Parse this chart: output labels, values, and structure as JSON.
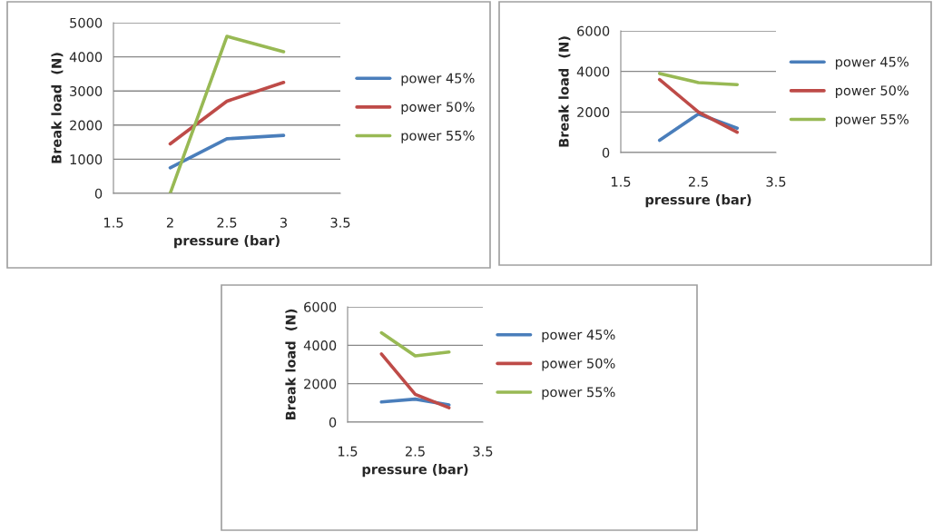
{
  "chart_data": [
    {
      "type": "line",
      "xlabel": "pressure (bar)",
      "ylabel": "Break load  (N)",
      "x": [
        2,
        2.5,
        3
      ],
      "xlim": [
        1.5,
        3.5
      ],
      "xticks": [
        1.5,
        2,
        2.5,
        3,
        3.5
      ],
      "ylim": [
        0,
        5000
      ],
      "yticks": [
        0,
        1000,
        2000,
        3000,
        4000,
        5000
      ],
      "grid": "y",
      "legend": "right",
      "marker": "none",
      "series": [
        {
          "name": "power 45%",
          "color": "#4a7ebb",
          "values": [
            750,
            1600,
            1700
          ]
        },
        {
          "name": "power 50%",
          "color": "#be4b48",
          "values": [
            1450,
            2700,
            3250
          ]
        },
        {
          "name": "power 55%",
          "color": "#98b954",
          "values": [
            0,
            4600,
            4150
          ]
        }
      ]
    },
    {
      "type": "line",
      "xlabel": "pressure (bar)",
      "ylabel": "Break load  (N)",
      "x": [
        2,
        2.5,
        3
      ],
      "xlim": [
        1.5,
        3.5
      ],
      "xticks": [
        1.5,
        2.5,
        3.5
      ],
      "ylim": [
        0,
        6000
      ],
      "yticks": [
        0,
        2000,
        4000,
        6000
      ],
      "grid": "y",
      "legend": "right",
      "marker": "none",
      "series": [
        {
          "name": "power 45%",
          "color": "#4a7ebb",
          "values": [
            600,
            1900,
            1200
          ]
        },
        {
          "name": "power 50%",
          "color": "#be4b48",
          "values": [
            3600,
            2000,
            1000
          ]
        },
        {
          "name": "power 55%",
          "color": "#98b954",
          "values": [
            3900,
            3450,
            3350
          ]
        }
      ]
    },
    {
      "type": "line",
      "xlabel": "pressure (bar)",
      "ylabel": "Break load  (N)",
      "x": [
        2,
        2.5,
        3
      ],
      "xlim": [
        1.5,
        3.5
      ],
      "xticks": [
        1.5,
        2.5,
        3.5
      ],
      "ylim": [
        0,
        6000
      ],
      "yticks": [
        0,
        2000,
        4000,
        6000
      ],
      "grid": "y",
      "legend": "right",
      "marker": "none",
      "series": [
        {
          "name": "power 45%",
          "color": "#4a7ebb",
          "values": [
            1050,
            1200,
            900
          ]
        },
        {
          "name": "power 50%",
          "color": "#be4b48",
          "values": [
            3550,
            1450,
            750
          ]
        },
        {
          "name": "power 55%",
          "color": "#98b954",
          "values": [
            4650,
            3450,
            3650
          ]
        }
      ]
    }
  ]
}
